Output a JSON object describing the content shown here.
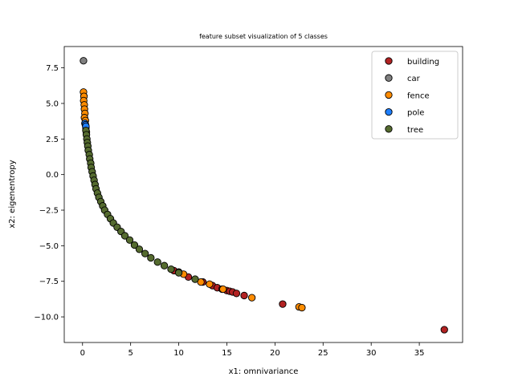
{
  "chart_data": {
    "type": "scatter",
    "title": "feature subset visualization of 5 classes",
    "xlabel": "x1: omnivariance",
    "ylabel": "x2: eigenentropy",
    "xlim": [
      -1.9,
      39.5
    ],
    "ylim": [
      -11.8,
      9.0
    ],
    "xticks": [
      0,
      5,
      10,
      15,
      20,
      25,
      30,
      35
    ],
    "yticks": [
      7.5,
      5.0,
      2.5,
      0.0,
      -2.5,
      -5.0,
      -7.5,
      -10.0
    ],
    "tick_labels_x": [
      "0",
      "5",
      "10",
      "15",
      "20",
      "25",
      "30",
      "35"
    ],
    "tick_labels_y": [
      "7.5",
      "5.0",
      "2.5",
      "0.0",
      "−2.5",
      "−5.0",
      "−7.5",
      "−10.0"
    ],
    "grid": false,
    "legend_position": "top-right",
    "series": [
      {
        "name": "building",
        "color": "#b22222",
        "points": [
          [
            9.5,
            -6.75
          ],
          [
            10.0,
            -6.85
          ],
          [
            11.0,
            -7.2
          ],
          [
            12.5,
            -7.55
          ],
          [
            13.5,
            -7.8
          ],
          [
            14.0,
            -7.95
          ],
          [
            14.5,
            -8.05
          ],
          [
            15.0,
            -8.15
          ],
          [
            15.3,
            -8.2
          ],
          [
            15.6,
            -8.25
          ],
          [
            16.0,
            -8.35
          ],
          [
            16.8,
            -8.5
          ],
          [
            20.8,
            -9.1
          ],
          [
            37.6,
            -10.9
          ]
        ]
      },
      {
        "name": "car",
        "color": "#808080",
        "points": [
          [
            0.1,
            8.0
          ]
        ]
      },
      {
        "name": "fence",
        "color": "#ff8c00",
        "points": [
          [
            0.1,
            5.8
          ],
          [
            0.15,
            5.5
          ],
          [
            0.12,
            5.2
          ],
          [
            0.18,
            4.9
          ],
          [
            0.2,
            4.6
          ],
          [
            0.25,
            4.3
          ],
          [
            0.2,
            4.0
          ],
          [
            0.3,
            3.8
          ],
          [
            0.35,
            3.3
          ],
          [
            0.4,
            3.0
          ],
          [
            10.5,
            -7.0
          ],
          [
            12.3,
            -7.55
          ],
          [
            13.2,
            -7.7
          ],
          [
            14.6,
            -8.05
          ],
          [
            17.6,
            -8.65
          ],
          [
            22.5,
            -9.3
          ],
          [
            22.8,
            -9.35
          ]
        ]
      },
      {
        "name": "pole",
        "color": "#1e7fff",
        "points": [
          [
            0.25,
            3.6
          ],
          [
            0.3,
            3.5
          ],
          [
            0.35,
            3.4
          ]
        ]
      },
      {
        "name": "tree",
        "color": "#556b2f",
        "points": [
          [
            0.35,
            3.1
          ],
          [
            0.4,
            2.8
          ],
          [
            0.45,
            2.5
          ],
          [
            0.5,
            2.25
          ],
          [
            0.55,
            2.0
          ],
          [
            0.6,
            1.7
          ],
          [
            0.7,
            1.4
          ],
          [
            0.75,
            1.1
          ],
          [
            0.85,
            0.8
          ],
          [
            0.9,
            0.5
          ],
          [
            1.0,
            0.2
          ],
          [
            1.1,
            -0.1
          ],
          [
            1.2,
            -0.4
          ],
          [
            1.3,
            -0.7
          ],
          [
            1.4,
            -1.0
          ],
          [
            1.55,
            -1.3
          ],
          [
            1.7,
            -1.6
          ],
          [
            1.9,
            -1.9
          ],
          [
            2.1,
            -2.2
          ],
          [
            2.3,
            -2.5
          ],
          [
            2.6,
            -2.8
          ],
          [
            2.9,
            -3.1
          ],
          [
            3.2,
            -3.4
          ],
          [
            3.6,
            -3.7
          ],
          [
            4.0,
            -4.0
          ],
          [
            4.4,
            -4.3
          ],
          [
            4.9,
            -4.6
          ],
          [
            5.4,
            -4.95
          ],
          [
            5.9,
            -5.25
          ],
          [
            6.5,
            -5.55
          ],
          [
            7.1,
            -5.85
          ],
          [
            7.8,
            -6.15
          ],
          [
            8.5,
            -6.4
          ],
          [
            9.2,
            -6.65
          ],
          [
            10.0,
            -6.9
          ],
          [
            11.7,
            -7.35
          ]
        ]
      }
    ]
  }
}
